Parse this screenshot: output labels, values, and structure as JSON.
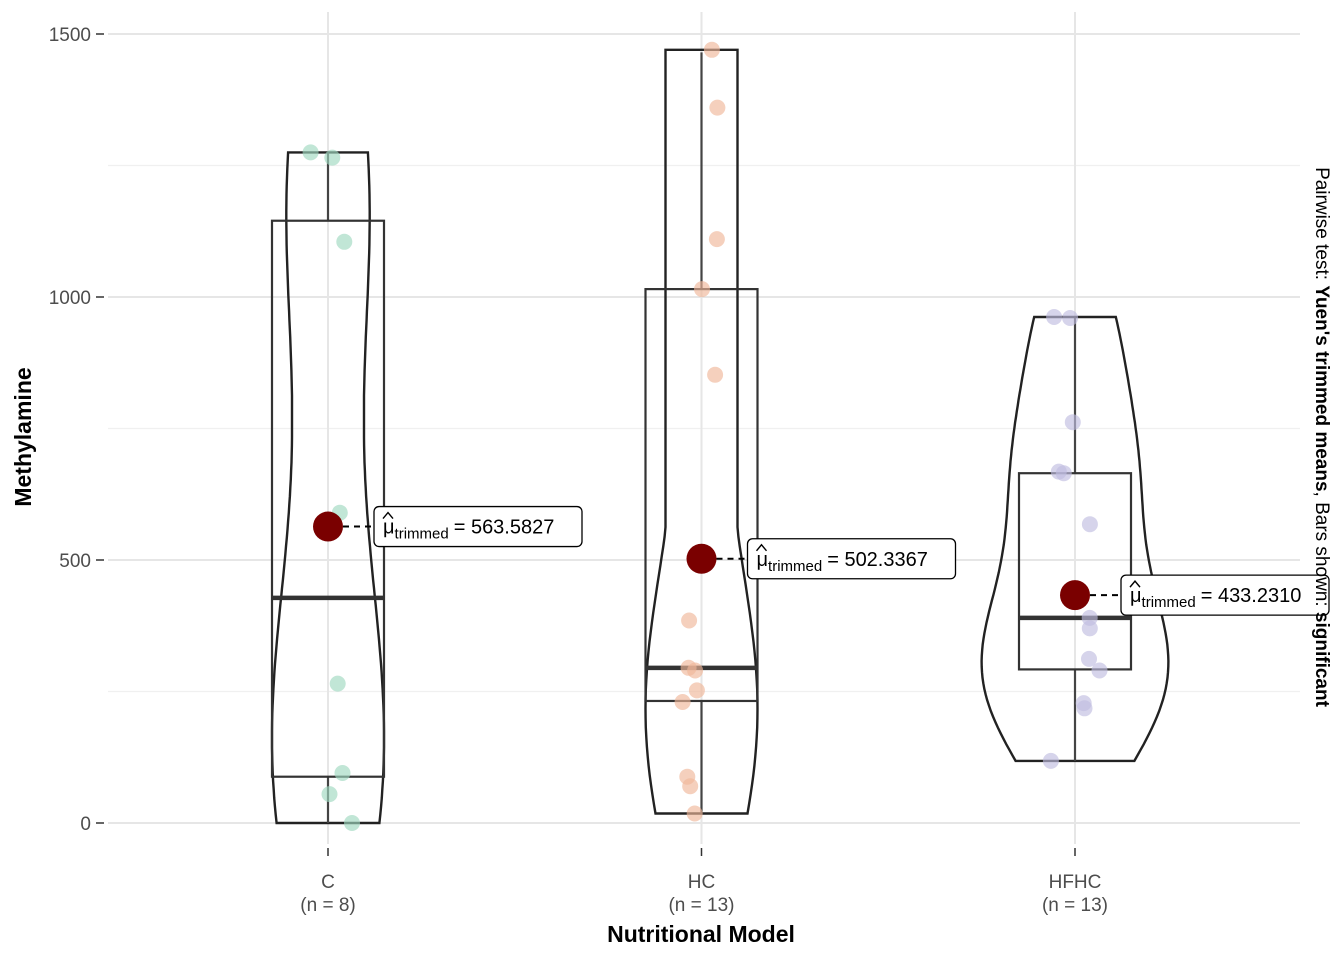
{
  "chart_data": {
    "type": "box-violin",
    "title": "",
    "xlabel": "Nutritional Model",
    "ylabel": "Methylamine",
    "ylim": [
      -50,
      1500
    ],
    "yticks": [
      0,
      500,
      1000,
      1500
    ],
    "grid": true,
    "subtitle_side": {
      "prefix": "Pairwise test: ",
      "test": "Yuen's trimmed means",
      "middle": ", Bars shown: ",
      "bars": "significant"
    },
    "groups": [
      {
        "name": "C",
        "n_label": "(n = 8)",
        "color": "#9fd8c0",
        "points": [
          0,
          55,
          95,
          265,
          590,
          1105,
          1265,
          1275
        ],
        "box": {
          "lower": 88,
          "q1": 88,
          "median": 428,
          "q3": 1145,
          "upper": 1275,
          "min": 0
        },
        "violin_max_halfwidth_frac": 0.15,
        "trimmed_mean": 563.5827,
        "annotation": "= 563.5827"
      },
      {
        "name": "HC",
        "n_label": "(n = 13)",
        "color": "#f0b79a",
        "points": [
          18,
          70,
          88,
          230,
          252,
          290,
          295,
          385,
          852,
          1015,
          1110,
          1360,
          1470
        ],
        "box": {
          "lower": 18,
          "q1": 232,
          "median": 295,
          "q3": 1015,
          "upper": 1465,
          "min": 18
        },
        "violin_max_halfwidth_frac": 0.15,
        "trimmed_mean": 502.3367,
        "annotation": "= 502.3367"
      },
      {
        "name": "HFHC",
        "n_label": "(n = 13)",
        "color": "#c0bde0",
        "points": [
          118,
          218,
          228,
          290,
          312,
          370,
          390,
          568,
          665,
          668,
          762,
          960,
          962
        ],
        "box": {
          "lower": 118,
          "q1": 292,
          "median": 390,
          "q3": 665,
          "upper": 960,
          "min": 118
        },
        "violin_max_halfwidth_frac": 0.25,
        "trimmed_mean": 433.231,
        "annotation": "= 433.2310"
      }
    ],
    "mean_symbol": "μ",
    "mean_subscript": "trimmed",
    "mean_color": "#7a0000"
  }
}
